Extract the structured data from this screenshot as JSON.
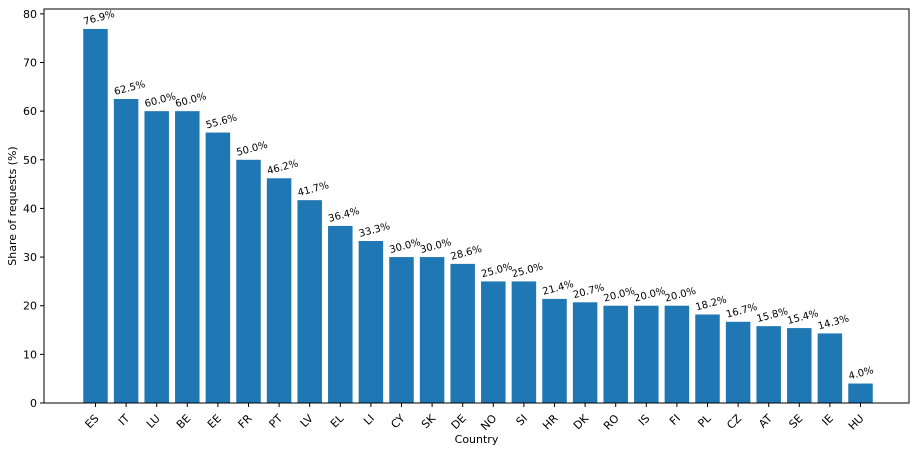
{
  "chart_data": {
    "type": "bar",
    "xlabel": "Country",
    "ylabel": "Share of requests (%)",
    "ylim": [
      0,
      81
    ],
    "yticks": [
      0,
      10,
      20,
      30,
      40,
      50,
      60,
      70,
      80
    ],
    "grid": false,
    "bar_color": "#1f77b4",
    "categories": [
      "ES",
      "IT",
      "LU",
      "BE",
      "EE",
      "FR",
      "PT",
      "LV",
      "EL",
      "LI",
      "CY",
      "SK",
      "DE",
      "NO",
      "SI",
      "HR",
      "DK",
      "RO",
      "IS",
      "FI",
      "PL",
      "CZ",
      "AT",
      "SE",
      "IE",
      "HU"
    ],
    "values": [
      76.9,
      62.5,
      60.0,
      60.0,
      55.6,
      50.0,
      46.2,
      41.7,
      36.4,
      33.3,
      30.0,
      30.0,
      28.6,
      25.0,
      25.0,
      21.4,
      20.7,
      20.0,
      20.0,
      20.0,
      18.2,
      16.7,
      15.8,
      15.4,
      14.3,
      4.0
    ],
    "value_labels": [
      "76.9%",
      "62.5%",
      "60.0%",
      "60.0%",
      "55.6%",
      "50.0%",
      "46.2%",
      "41.7%",
      "36.4%",
      "33.3%",
      "30.0%",
      "30.0%",
      "28.6%",
      "25.0%",
      "25.0%",
      "21.4%",
      "20.7%",
      "20.0%",
      "20.0%",
      "20.0%",
      "18.2%",
      "16.7%",
      "15.8%",
      "15.4%",
      "14.3%",
      "4.0%"
    ]
  }
}
